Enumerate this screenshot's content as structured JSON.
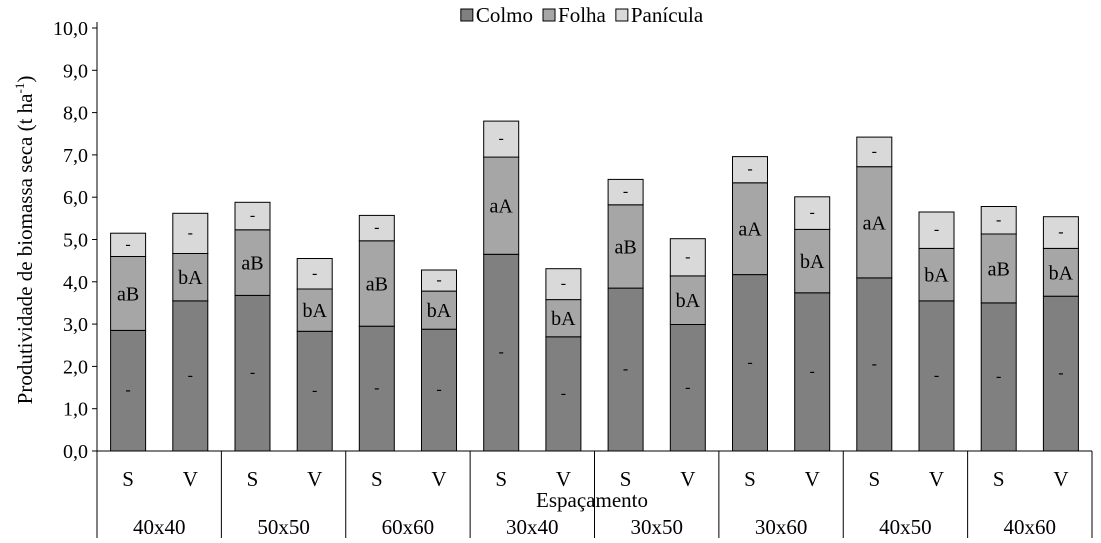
{
  "chart_data": {
    "type": "bar",
    "stacked": true,
    "ylabel": "Produtividade de biomassa seca (t ha",
    "ylabel_sup": "-1",
    "ylabel_close": ")",
    "xlabel": "Espaçamento",
    "ylim": [
      0,
      10
    ],
    "ytick_step": 1,
    "grid": false,
    "legend_position": "top-center",
    "subcategories": [
      "S",
      "V",
      "S",
      "V",
      "S",
      "V",
      "S",
      "V",
      "S",
      "V",
      "S",
      "V",
      "S",
      "V",
      "S",
      "V"
    ],
    "groups": [
      "40x40",
      "50x50",
      "60x60",
      "30x40",
      "30x50",
      "30x60",
      "40x50",
      "40x60"
    ],
    "series": [
      {
        "name": "Colmo",
        "color": "#808080",
        "values": [
          2.85,
          3.55,
          3.68,
          2.83,
          2.95,
          2.88,
          4.65,
          2.7,
          3.85,
          2.99,
          4.17,
          3.74,
          4.09,
          3.55,
          3.5,
          3.66
        ],
        "labels": [
          "-",
          "-",
          "-",
          "-",
          "-",
          "-",
          "-",
          "-",
          "-",
          "-",
          "-",
          "-",
          "-",
          "-",
          "-",
          "-"
        ]
      },
      {
        "name": "Folha",
        "color": "#a6a6a6",
        "values": [
          1.75,
          1.12,
          1.55,
          1.0,
          2.02,
          0.9,
          2.3,
          0.88,
          1.97,
          1.15,
          2.17,
          1.5,
          2.63,
          1.24,
          1.63,
          1.13
        ],
        "labels": [
          "aB",
          "bA",
          "aB",
          "bA",
          "aB",
          "bA",
          "aA",
          "bA",
          "aB",
          "bA",
          "aA",
          "bA",
          "aA",
          "bA",
          "aB",
          "bA"
        ]
      },
      {
        "name": "Panícula",
        "color": "#d9d9d9",
        "values": [
          0.55,
          0.95,
          0.65,
          0.72,
          0.6,
          0.5,
          0.85,
          0.73,
          0.6,
          0.88,
          0.62,
          0.77,
          0.7,
          0.86,
          0.65,
          0.75
        ],
        "labels": [
          "-",
          "-",
          "-",
          "-",
          "-",
          "-",
          "-",
          "-",
          "-",
          "-",
          "-",
          "-",
          "-",
          "-",
          "-",
          "-"
        ]
      }
    ]
  }
}
